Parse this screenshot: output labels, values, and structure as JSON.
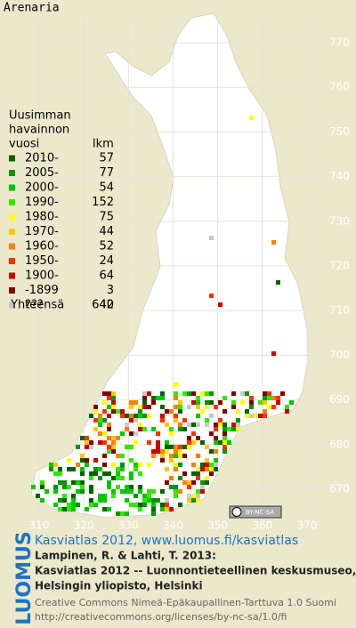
{
  "title": "Arenaria",
  "legend": {
    "heading": [
      "Uusimman",
      "havainnon",
      "vuosi"
    ],
    "count_heading": "lkm",
    "rows": [
      {
        "label": "2010-",
        "count": 57,
        "color": "#006400"
      },
      {
        "label": "2005-",
        "count": 77,
        "color": "#009600"
      },
      {
        "label": "2000-",
        "count": 54,
        "color": "#00c800"
      },
      {
        "label": "1990-",
        "count": 152,
        "color": "#33e600"
      },
      {
        "label": "1980-",
        "count": 75,
        "color": "#ffff00"
      },
      {
        "label": "1970-",
        "count": 44,
        "color": "#ffc800"
      },
      {
        "label": "1960-",
        "count": 52,
        "color": "#ff8000"
      },
      {
        "label": "1950-",
        "count": 24,
        "color": "#ff3000"
      },
      {
        "label": "1900-",
        "count": 64,
        "color": "#c80000"
      },
      {
        "label": "-1899",
        "count": 3,
        "color": "#800000"
      },
      {
        "label": "???",
        "count": 40,
        "color": "#c8c8c8"
      }
    ],
    "total": {
      "label": "Yhteensä",
      "count": 642
    }
  },
  "grid": {
    "north": [
      770,
      760,
      750,
      740,
      730,
      720,
      710,
      700,
      690,
      680,
      670
    ],
    "east": [
      310,
      320,
      330,
      340,
      350,
      360,
      370
    ]
  },
  "license_badge": "BY-NC-SA",
  "logo": "LUOMUS",
  "footer": {
    "link": "Kasviatlas 2012, www.luomus.fi/kasviatlas",
    "citation": [
      "Lampinen, R. & Lahti, T. 2013:",
      "Kasviatlas 2012 -- Luonnontieteellinen keskusmuseo,",
      "Helsingin yliopisto, Helsinki"
    ],
    "license": [
      "Creative Commons Nimeä-Epäkaupallinen-Tarttuva 1.0 Suomi",
      "http://creativecommons.org/licenses/by-nc-sa/1.0/fi"
    ]
  }
}
